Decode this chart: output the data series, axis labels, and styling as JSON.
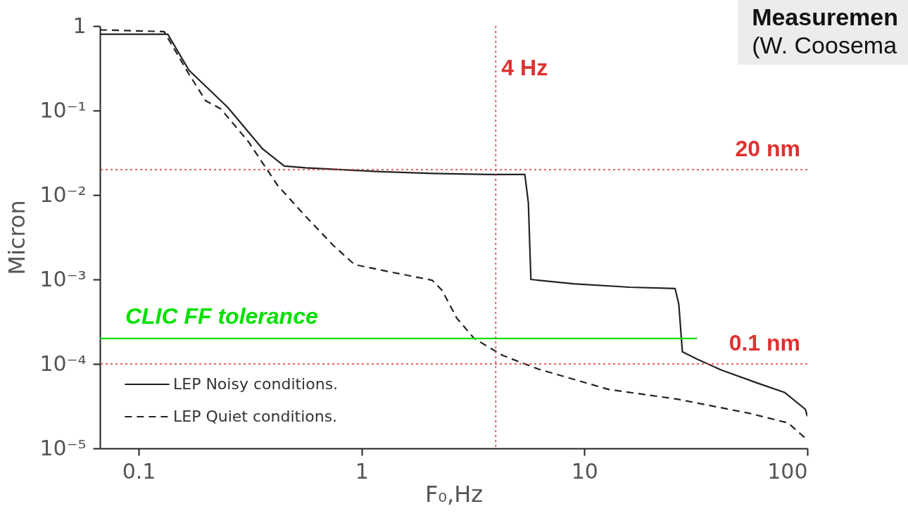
{
  "chart_data": {
    "type": "line",
    "xlabel": "F₀,Hz",
    "ylabel": "Micron",
    "log": "xy",
    "legend": "bottom left",
    "grid": false,
    "marker": "none",
    "xlim": [
      0.067,
      100
    ],
    "xticks": [
      0.1,
      1,
      10,
      100
    ],
    "ylim": [
      1e-05,
      1
    ],
    "yticks": [
      {
        "value": 1e-05,
        "label": "10⁻⁵"
      },
      {
        "value": 0.0001,
        "label": "10⁻⁴"
      },
      {
        "value": 0.001,
        "label": "10⁻³"
      },
      {
        "value": 0.01,
        "label": "10⁻²"
      },
      {
        "value": 0.1,
        "label": "10⁻¹"
      },
      1
    ],
    "series": [
      {
        "name": "LEP Noisy conditions.",
        "color": "#222222",
        "line_style": "solid",
        "x": [
          0.067,
          0.135,
          0.168,
          0.25,
          0.36,
          0.45,
          0.56,
          1.16,
          2.07,
          3.7,
          5.4,
          5.6,
          5.75,
          8.9,
          15.9,
          25.5,
          26.5,
          27.5,
          31.8,
          41,
          59,
          79,
          98,
          100
        ],
        "values": [
          0.8,
          0.8,
          0.3,
          0.11,
          0.035,
          0.022,
          0.021,
          0.019,
          0.018,
          0.0175,
          0.0175,
          0.0081,
          0.001,
          0.00089,
          0.00081,
          0.00078,
          0.00051,
          0.000139,
          0.000115,
          8.5e-05,
          6e-05,
          4.6e-05,
          2.9e-05,
          2.4e-05
        ]
      },
      {
        "name": "LEP Quiet conditions.",
        "color": "#222222",
        "line_style": "dashed",
        "x": [
          0.067,
          0.13,
          0.168,
          0.2,
          0.233,
          0.31,
          0.42,
          0.56,
          0.75,
          0.93,
          1.34,
          2.07,
          2.3,
          2.67,
          3.2,
          4.3,
          6.2,
          12.8,
          26.5,
          55,
          82,
          100
        ],
        "values": [
          0.9,
          0.86,
          0.27,
          0.13,
          0.105,
          0.043,
          0.013,
          0.0056,
          0.0025,
          0.0015,
          0.00123,
          0.00098,
          0.00074,
          0.00035,
          0.0002,
          0.000126,
          8.7e-05,
          5e-05,
          3.8e-05,
          2.6e-05,
          2e-05,
          1.26e-05
        ]
      },
      {
        "color": "#00e000",
        "line_style": "solid",
        "x": [
          0.067,
          32
        ],
        "values": [
          0.0002,
          0.0002
        ]
      }
    ],
    "ref_lines": [
      {
        "axis": "x",
        "value": 4,
        "label": "4 Hz",
        "color": "#e03030",
        "line_style": "dotted"
      },
      {
        "axis": "y",
        "value": 0.02,
        "label": "20 nm",
        "color": "#e03030",
        "line_style": "dotted"
      },
      {
        "axis": "y",
        "value": 0.0001,
        "label": "0.1 nm",
        "color": "#e03030",
        "line_style": "dotted"
      }
    ],
    "annotations": [
      "Measuremen",
      "(W. Coosema",
      {
        "text": "CLIC FF tolerance",
        "x": 0.087,
        "y": 0.0002
      }
    ]
  }
}
